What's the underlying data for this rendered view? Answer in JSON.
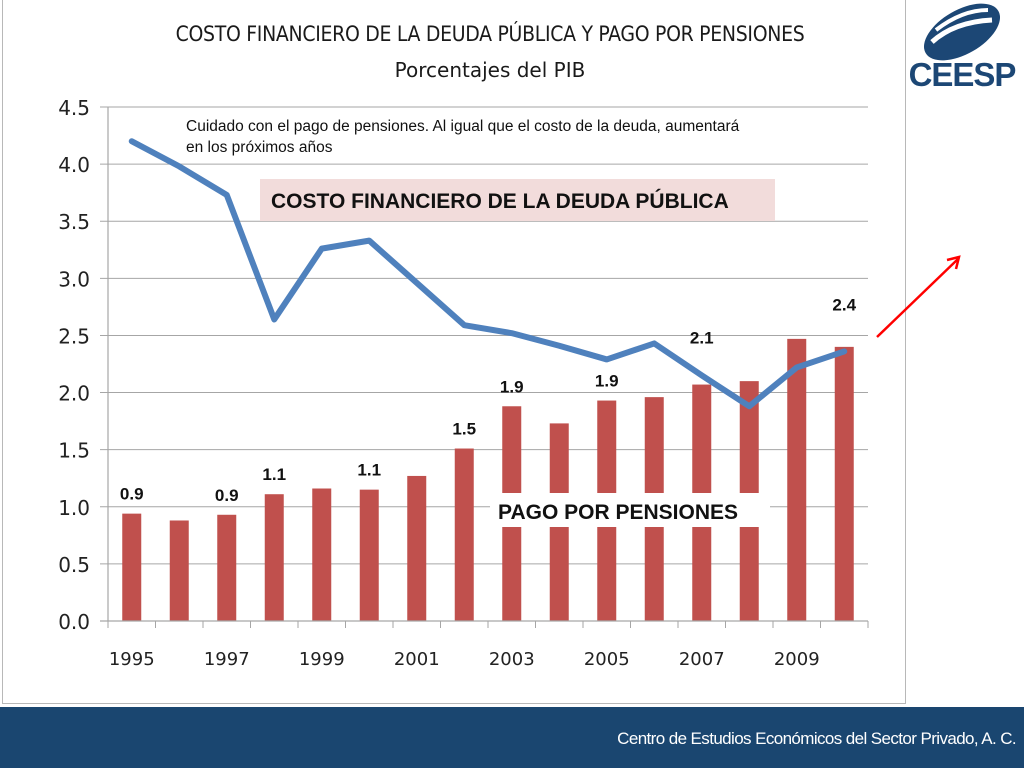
{
  "header": {
    "title": "COSTO FINANCIERO DE LA DEUDA PÚBLICA Y PAGO POR PENSIONES",
    "subtitle": "Porcentajes del PIB",
    "logo_text": "CEESP",
    "logo_color": "#1c4775"
  },
  "annotation": "Cuidado con el pago de pensiones. Al igual que el costo de la deuda, aumentará en los próximos años",
  "footer": {
    "text": "Centro de Estudios Económicos del Sector Privado, A. C.",
    "background": "#1a4670"
  },
  "chart_data": {
    "type": "bar+line",
    "title": "COSTO FINANCIERO DE LA DEUDA PÚBLICA Y PAGO POR PENSIONES",
    "subtitle": "Porcentajes del PIB",
    "xlabel": "",
    "ylabel": "",
    "ylim": [
      0,
      4.5
    ],
    "yticks": [
      "0.0",
      "0.5",
      "1.0",
      "1.5",
      "2.0",
      "2.5",
      "3.0",
      "3.5",
      "4.0",
      "4.5"
    ],
    "ytick_values": [
      0,
      0.5,
      1.0,
      1.5,
      2.0,
      2.5,
      3.0,
      3.5,
      4.0,
      4.5
    ],
    "grid": true,
    "categories": [
      1995,
      1996,
      1997,
      1998,
      1999,
      2000,
      2001,
      2002,
      2003,
      2004,
      2005,
      2006,
      2007,
      2008,
      2009,
      2010
    ],
    "xtick_labels": [
      "1995",
      "",
      "1997",
      "",
      "1999",
      "",
      "2001",
      "",
      "2003",
      "",
      "2005",
      "",
      "2007",
      "",
      "2009",
      ""
    ],
    "series": [
      {
        "name": "PAGO POR PENSIONES",
        "type": "bar",
        "color": "#c0504d",
        "values": [
          0.94,
          0.88,
          0.93,
          1.11,
          1.16,
          1.15,
          1.27,
          1.51,
          1.88,
          1.73,
          1.93,
          1.96,
          2.07,
          2.1,
          2.47,
          2.4
        ]
      },
      {
        "name": "COSTO FINANCIERO DE LA DEUDA PÚBLICA",
        "type": "line",
        "color": "#4f81bd",
        "values": [
          4.2,
          3.98,
          3.73,
          2.64,
          3.26,
          3.33,
          2.96,
          2.59,
          2.52,
          2.41,
          2.29,
          2.43,
          2.15,
          1.88,
          2.22,
          2.36
        ]
      }
    ],
    "data_labels": [
      {
        "index": 0,
        "text": "0.9"
      },
      {
        "index": 2,
        "text": "0.9"
      },
      {
        "index": 3,
        "text": "1.1"
      },
      {
        "index": 5,
        "text": "1.1"
      },
      {
        "index": 7,
        "text": "1.5"
      },
      {
        "index": 8,
        "text": "1.9"
      },
      {
        "index": 10,
        "text": "1.9"
      },
      {
        "index": 12,
        "text": "2.1",
        "value": 2.43
      },
      {
        "index": 15,
        "text": "2.4",
        "value": 2.72
      }
    ],
    "series_labels": {
      "line": "COSTO FINANCIERO DE LA DEUDA PÚBLICA",
      "line_label_bg": "#f2dcdb",
      "bars": "PAGO POR PENSIONES"
    },
    "arrow": {
      "color": "#ff0000",
      "direction": "up-right"
    }
  }
}
